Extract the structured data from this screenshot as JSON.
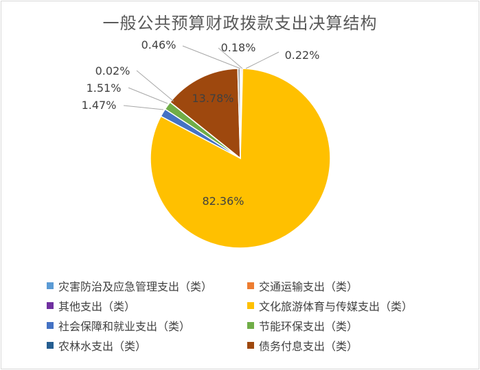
{
  "chart_data": {
    "type": "pie",
    "title": "一般公共预算财政拨款支出决算结构",
    "slices": [
      {
        "name": "灾害防治及应急管理支出（类）",
        "value": 0.18,
        "label": "0.18%",
        "color": "#5b9bd5"
      },
      {
        "name": "交通运输支出（类）",
        "value": 0.22,
        "label": "0.22%",
        "color": "#ed7d31"
      },
      {
        "name": "其他支出（类）",
        "value": 0.0,
        "label": "",
        "color": "#7030a0"
      },
      {
        "name": "文化旅游体育与传媒支出（类）",
        "value": 82.36,
        "label": "82.36%",
        "color": "#ffc000"
      },
      {
        "name": "社会保障和就业支出（类）",
        "value": 1.47,
        "label": "1.47%",
        "color": "#4472c4"
      },
      {
        "name": "节能环保支出（类）",
        "value": 1.51,
        "label": "1.51%",
        "color": "#70ad47"
      },
      {
        "name": "农林水支出（类）",
        "value": 0.02,
        "label": "0.02%",
        "color": "#255e91"
      },
      {
        "name": "债务付息支出（类）",
        "value": 13.78,
        "label": "13.78%",
        "color": "#9e480e"
      },
      {
        "name": "",
        "value": 0.46,
        "label": "0.46%",
        "color": "#a5a5a5"
      }
    ],
    "legend": [
      {
        "name": "灾害防治及应急管理支出（类）",
        "color": "#5b9bd5"
      },
      {
        "name": "交通运输支出（类）",
        "color": "#ed7d31"
      },
      {
        "name": "其他支出（类）",
        "color": "#7030a0"
      },
      {
        "name": "文化旅游体育与传媒支出（类）",
        "color": "#ffc000"
      },
      {
        "name": "社会保障和就业支出（类）",
        "color": "#4472c4"
      },
      {
        "name": "节能环保支出（类）",
        "color": "#70ad47"
      },
      {
        "name": "农林水支出（类）",
        "color": "#255e91"
      },
      {
        "name": "债务付息支出（类）",
        "color": "#9e480e"
      }
    ],
    "legend_position": "bottom"
  }
}
